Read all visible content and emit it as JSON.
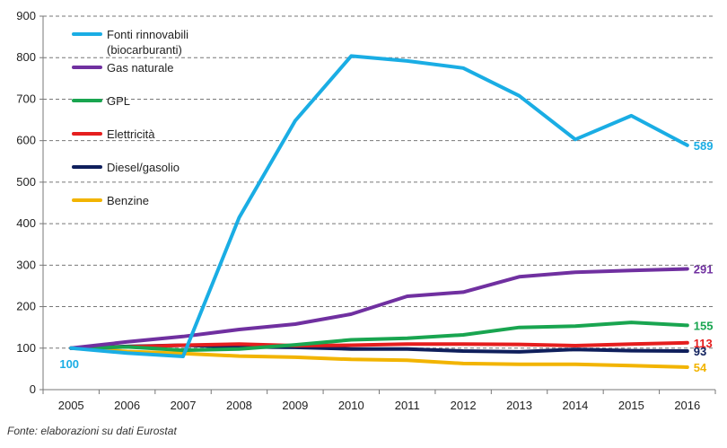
{
  "chart_data": {
    "type": "line",
    "x": [
      "2005",
      "2006",
      "2007",
      "2008",
      "2009",
      "2010",
      "2011",
      "2012",
      "2013",
      "2014",
      "2015",
      "2016"
    ],
    "ylim": [
      0,
      900
    ],
    "yticks": [
      0,
      100,
      200,
      300,
      400,
      500,
      600,
      700,
      800,
      900
    ],
    "grid": "horizontal-dashed",
    "legend_placement": "top-left",
    "series": [
      {
        "name": "Fonti rinnovabili (biocarburanti)",
        "color": "#1AADE4",
        "values": [
          100,
          88,
          80,
          415,
          648,
          804,
          792,
          775,
          708,
          603,
          660,
          589
        ],
        "end_label": "589",
        "start_label": "100"
      },
      {
        "name": "Gas naturale",
        "color": "#7030A0",
        "values": [
          100,
          115,
          128,
          145,
          158,
          182,
          225,
          235,
          272,
          283,
          287,
          291
        ],
        "end_label": "291"
      },
      {
        "name": "GPL",
        "color": "#19A550",
        "values": [
          100,
          103,
          95,
          98,
          108,
          120,
          124,
          132,
          150,
          153,
          162,
          155
        ],
        "end_label": "155"
      },
      {
        "name": "Elettricità",
        "color": "#E51E1E",
        "values": [
          100,
          103,
          107,
          110,
          106,
          107,
          110,
          110,
          109,
          106,
          110,
          113
        ],
        "end_label": "113"
      },
      {
        "name": "Diesel/gasolio",
        "color": "#0F1F5C",
        "values": [
          100,
          104,
          107,
          103,
          102,
          98,
          98,
          93,
          91,
          97,
          94,
          93
        ],
        "end_label": "93"
      },
      {
        "name": "Benzine",
        "color": "#F2B400",
        "values": [
          100,
          92,
          87,
          81,
          78,
          73,
          71,
          63,
          61,
          61,
          58,
          54
        ],
        "end_label": "54"
      }
    ]
  },
  "source_text": "Fonte: elaborazioni su dati Eurostat"
}
